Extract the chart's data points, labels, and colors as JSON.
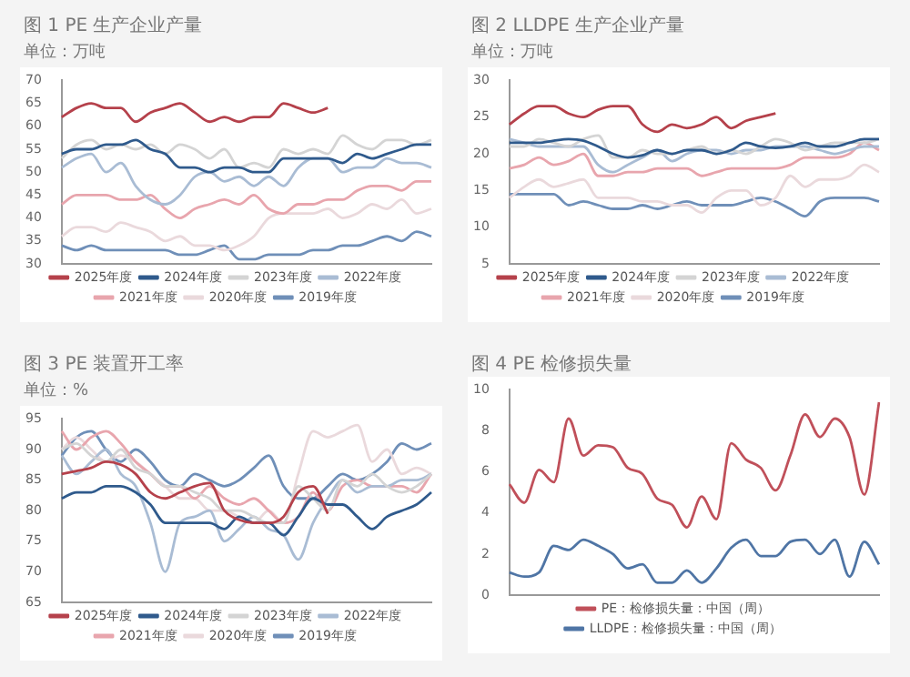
{
  "chart_data": [
    {
      "type": "line",
      "title": "图 1 PE 生产企业产量",
      "subtitle": "单位：万吨",
      "categories": [
        null,
        null,
        null,
        null,
        null,
        null,
        null,
        null,
        null,
        null,
        null,
        null,
        null,
        null,
        null,
        null,
        null,
        null,
        null,
        null,
        null,
        null,
        null,
        null,
        null,
        null
      ],
      "ylim": [
        30,
        70
      ],
      "yticks": [
        30,
        35,
        40,
        45,
        50,
        55,
        60,
        65,
        70
      ],
      "legend": "bottom",
      "marker": "none",
      "series": [
        {
          "name": "2025年度",
          "color": "#b5414b",
          "values": [
            62,
            64,
            65,
            64,
            64,
            61,
            63,
            64,
            65,
            63,
            61,
            62,
            61,
            62,
            62,
            65,
            64,
            63,
            64,
            null,
            null,
            null,
            null,
            null,
            null,
            null
          ]
        },
        {
          "name": "2024年度",
          "color": "#2f5a8c",
          "values": [
            54,
            55,
            55,
            56,
            56,
            57,
            55,
            54,
            51,
            51,
            50,
            51,
            51,
            50,
            50,
            53,
            53,
            53,
            53,
            52,
            54,
            53,
            54,
            55,
            56,
            56
          ]
        },
        {
          "name": "2023年度",
          "color": "#d4d4d4",
          "values": [
            53,
            56,
            57,
            55,
            56,
            55,
            56,
            54,
            56,
            55,
            53,
            55,
            51,
            52,
            51,
            55,
            54,
            55,
            54,
            58,
            56,
            55,
            57,
            57,
            56,
            57
          ]
        },
        {
          "name": "2022年度",
          "color": "#a9bcd4",
          "values": [
            51,
            53,
            54,
            50,
            52,
            47,
            44,
            43,
            45,
            49,
            50,
            48,
            49,
            47,
            49,
            47,
            51,
            53,
            53,
            50,
            51,
            51,
            53,
            52,
            52,
            51
          ]
        },
        {
          "name": "2021年度",
          "color": "#e8a5ad",
          "values": [
            43,
            45,
            45,
            45,
            44,
            44,
            45,
            42,
            40,
            42,
            43,
            44,
            43,
            45,
            42,
            41,
            43,
            43,
            44,
            44,
            46,
            47,
            47,
            46,
            48,
            48
          ]
        },
        {
          "name": "2020年度",
          "color": "#ead9dc",
          "values": [
            36,
            38,
            38,
            37,
            39,
            38,
            37,
            35,
            36,
            34,
            34,
            33,
            34,
            36,
            40,
            41,
            41,
            41,
            42,
            40,
            41,
            43,
            42,
            44,
            41,
            42
          ]
        },
        {
          "name": "2019年度",
          "color": "#6f8fb8",
          "values": [
            34,
            33,
            34,
            33,
            33,
            33,
            33,
            33,
            32,
            32,
            33,
            34,
            31,
            31,
            32,
            32,
            32,
            33,
            33,
            34,
            34,
            35,
            36,
            35,
            37,
            36
          ]
        }
      ]
    },
    {
      "type": "line",
      "title": "图 2 LLDPE 生产企业产量",
      "subtitle": "单位：万吨",
      "categories": [
        null,
        null,
        null,
        null,
        null,
        null,
        null,
        null,
        null,
        null,
        null,
        null,
        null,
        null,
        null,
        null,
        null,
        null,
        null,
        null,
        null,
        null,
        null,
        null,
        null,
        null
      ],
      "ylim": [
        5,
        30
      ],
      "yticks": [
        5,
        10,
        15,
        20,
        25,
        30
      ],
      "legend": "bottom",
      "marker": "none",
      "series": [
        {
          "name": "2025年度",
          "color": "#b5414b",
          "values": [
            24,
            25.5,
            26.5,
            26.5,
            25.5,
            25,
            26,
            26.5,
            26.5,
            24,
            23,
            24,
            23.5,
            24,
            25,
            23.5,
            24.5,
            25,
            25.5,
            null,
            null,
            null,
            null,
            null,
            null,
            null
          ]
        },
        {
          "name": "2024年度",
          "color": "#2f5a8c",
          "values": [
            21.5,
            21.5,
            21.5,
            21.8,
            22,
            21.8,
            21,
            20,
            19.5,
            19.8,
            20.5,
            20,
            20.5,
            20.5,
            20,
            20.5,
            21.5,
            21,
            20.8,
            21,
            21.5,
            21,
            21,
            21.5,
            22,
            22
          ]
        },
        {
          "name": "2023年度",
          "color": "#d4d4d4",
          "values": [
            21,
            21,
            22,
            21.5,
            21,
            22,
            22.5,
            19.5,
            19.5,
            20.5,
            20,
            20,
            20.5,
            21,
            20,
            20.5,
            20,
            21,
            22,
            21.5,
            20.5,
            21,
            21.5,
            21.5,
            21.5,
            22
          ]
        },
        {
          "name": "2022年度",
          "color": "#a9bcd4",
          "values": [
            22,
            21.5,
            21,
            21,
            21,
            21,
            18.5,
            17.5,
            18.5,
            19.5,
            20.5,
            19,
            20,
            20.5,
            20.5,
            20,
            20.5,
            20.5,
            21,
            21,
            21,
            20.5,
            20,
            20.5,
            21,
            21
          ]
        },
        {
          "name": "2021年度",
          "color": "#e8a5ad",
          "values": [
            18,
            18.5,
            19.5,
            18.5,
            19,
            20,
            17,
            17,
            17.5,
            17.5,
            18,
            18,
            18,
            17,
            17.5,
            18,
            18,
            18,
            18,
            18.5,
            19.5,
            19.5,
            19.5,
            20,
            21.5,
            20.5
          ]
        },
        {
          "name": "2020年度",
          "color": "#ead9dc",
          "values": [
            14,
            15.5,
            16.5,
            15.5,
            16,
            16.5,
            14,
            14,
            14,
            13.5,
            13.5,
            13,
            13,
            12,
            14,
            15,
            15,
            13,
            14,
            17,
            15.5,
            16.5,
            16.5,
            17,
            18.5,
            17.5
          ]
        },
        {
          "name": "2019年度",
          "color": "#6f8fb8",
          "values": [
            14.5,
            14.5,
            14.5,
            14.5,
            13,
            13.5,
            13,
            12.5,
            12.5,
            13,
            12.5,
            13,
            13.5,
            13,
            13,
            13,
            13.5,
            14,
            13.5,
            12.5,
            11.5,
            13.5,
            14,
            14,
            14,
            13.5
          ]
        }
      ]
    },
    {
      "type": "line",
      "title": "图 3 PE 装置开工率",
      "subtitle": "单位：%",
      "categories": [
        null,
        null,
        null,
        null,
        null,
        null,
        null,
        null,
        null,
        null,
        null,
        null,
        null,
        null,
        null,
        null,
        null,
        null,
        null,
        null,
        null,
        null,
        null,
        null,
        null,
        null
      ],
      "ylim": [
        65,
        95
      ],
      "yticks": [
        65,
        70,
        75,
        80,
        85,
        90,
        95
      ],
      "legend": "bottom",
      "marker": "none",
      "series": [
        {
          "name": "2025年度",
          "color": "#b5414b",
          "values": [
            86,
            86.5,
            87,
            88,
            87.5,
            86,
            83,
            82,
            83,
            84,
            84.5,
            80,
            78.5,
            78,
            78,
            79,
            83,
            84,
            79.5,
            null,
            null,
            null,
            null,
            null,
            null,
            null
          ]
        },
        {
          "name": "2024年度",
          "color": "#2f5a8c",
          "values": [
            82,
            83,
            83,
            84,
            84,
            83,
            81,
            78,
            78,
            78,
            78,
            77,
            79,
            78,
            78,
            76,
            79,
            82,
            81,
            81,
            79,
            77,
            79,
            80,
            81,
            83
          ]
        },
        {
          "name": "2023年度",
          "color": "#d4d4d4",
          "values": [
            90,
            91,
            89,
            88,
            90,
            87,
            86,
            84,
            84,
            83,
            82,
            80,
            80,
            79,
            78,
            78,
            84,
            82,
            80,
            85,
            84,
            86,
            84,
            83,
            84,
            86
          ]
        },
        {
          "name": "2022年度",
          "color": "#a9bcd4",
          "values": [
            89,
            86,
            88,
            90,
            86,
            84,
            78,
            70,
            78,
            79,
            80,
            75,
            77,
            79,
            77,
            76,
            72,
            78,
            82,
            85,
            83,
            84,
            84,
            85,
            85,
            86
          ]
        },
        {
          "name": "2021年度",
          "color": "#e8a5ad",
          "values": [
            93,
            90,
            92,
            93,
            91,
            88,
            86,
            84,
            84,
            82,
            84,
            82,
            81,
            82,
            80,
            78,
            79,
            83,
            80,
            84,
            85,
            84,
            84,
            84,
            83,
            86
          ]
        },
        {
          "name": "2020年度",
          "color": "#ead9dc",
          "values": [
            90,
            92,
            90,
            88,
            89,
            88,
            86,
            84,
            82,
            82,
            80,
            80,
            79,
            78,
            80,
            78,
            86,
            93,
            92,
            93,
            94,
            88,
            90,
            86,
            87,
            86
          ]
        },
        {
          "name": "2019年度",
          "color": "#6f8fb8",
          "values": [
            89,
            92,
            93,
            90,
            88,
            90,
            88,
            85,
            84,
            86,
            85,
            84,
            85,
            87,
            89,
            84,
            82,
            82,
            84,
            86,
            85,
            86,
            88,
            91,
            90,
            91
          ]
        }
      ]
    },
    {
      "type": "line",
      "title": "图 4 PE 检修损失量",
      "categories": [
        null,
        null,
        null,
        null,
        null,
        null,
        null,
        null,
        null,
        null,
        null,
        null,
        null,
        null,
        null,
        null,
        null,
        null,
        null,
        null,
        null,
        null,
        null,
        null,
        null,
        null
      ],
      "ylim": [
        0,
        10
      ],
      "yticks": [
        0,
        2,
        4,
        6,
        8,
        10
      ],
      "legend": "bottom",
      "marker": "none",
      "series": [
        {
          "name": "PE：检修损失量：中国（周）",
          "color": "#c0505a",
          "values": [
            5.4,
            4.5,
            6.1,
            5.5,
            8.6,
            6.8,
            7.3,
            7.2,
            6.2,
            5.9,
            4.7,
            4.4,
            3.3,
            4.8,
            3.7,
            7.4,
            6.6,
            6.2,
            5.1,
            6.8,
            8.8,
            7.7,
            8.6,
            7.7,
            4.9,
            9.4
          ]
        },
        {
          "name": "LLDPE：检修损失量：中国（周）",
          "color": "#4f75a5",
          "values": [
            1.1,
            0.9,
            1.1,
            2.4,
            2.2,
            2.7,
            2.4,
            2.0,
            1.3,
            1.5,
            0.6,
            0.6,
            1.2,
            0.6,
            1.3,
            2.3,
            2.7,
            1.9,
            1.9,
            2.6,
            2.7,
            2.0,
            2.7,
            0.9,
            2.6,
            1.5
          ]
        }
      ]
    }
  ]
}
